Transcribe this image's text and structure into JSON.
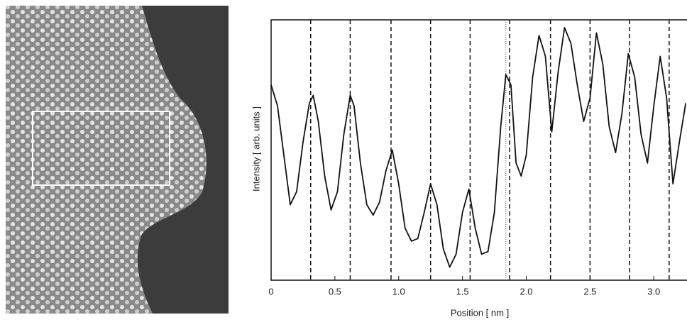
{
  "chart_data": {
    "type": "line",
    "x_label": "Position [ nm ]",
    "y_label": "Intensity [ arb. units ]",
    "x": [
      0,
      0.05,
      0.1,
      0.15,
      0.2,
      0.25,
      0.3,
      0.33,
      0.37,
      0.42,
      0.47,
      0.52,
      0.57,
      0.62,
      0.65,
      0.7,
      0.75,
      0.8,
      0.85,
      0.9,
      0.95,
      1.0,
      1.05,
      1.1,
      1.15,
      1.2,
      1.25,
      1.3,
      1.35,
      1.4,
      1.45,
      1.5,
      1.55,
      1.6,
      1.65,
      1.7,
      1.75,
      1.8,
      1.84,
      1.88,
      1.92,
      1.96,
      2.0,
      2.05,
      2.1,
      2.15,
      2.2,
      2.25,
      2.3,
      2.35,
      2.4,
      2.45,
      2.5,
      2.55,
      2.6,
      2.65,
      2.7,
      2.75,
      2.8,
      2.85,
      2.9,
      2.95,
      3.0,
      3.05,
      3.1,
      3.15,
      3.2,
      3.25
    ],
    "series": [
      {
        "color": "#111111",
        "values": [
          0.75,
          0.67,
          0.48,
          0.29,
          0.34,
          0.53,
          0.68,
          0.71,
          0.61,
          0.4,
          0.27,
          0.34,
          0.56,
          0.71,
          0.67,
          0.45,
          0.29,
          0.25,
          0.3,
          0.42,
          0.5,
          0.37,
          0.2,
          0.15,
          0.16,
          0.26,
          0.37,
          0.29,
          0.12,
          0.05,
          0.1,
          0.26,
          0.35,
          0.2,
          0.1,
          0.11,
          0.26,
          0.59,
          0.79,
          0.75,
          0.45,
          0.4,
          0.48,
          0.78,
          0.94,
          0.86,
          0.57,
          0.8,
          0.97,
          0.91,
          0.75,
          0.61,
          0.7,
          0.95,
          0.83,
          0.59,
          0.49,
          0.64,
          0.87,
          0.78,
          0.56,
          0.45,
          0.67,
          0.86,
          0.7,
          0.37,
          0.53,
          0.68
        ]
      }
    ],
    "xlim": [
      0,
      3.26
    ],
    "ylim": [
      0,
      1
    ],
    "xticks": [
      0,
      0.5,
      {
        "value": 1,
        "label": "1.0"
      },
      1.5,
      {
        "value": 2,
        "label": "2.0"
      },
      2.5,
      {
        "value": 3,
        "label": "3.0"
      }
    ],
    "dashed_lines": [
      0.31,
      0.62,
      0.94,
      1.25,
      1.56,
      1.87,
      2.19,
      2.5,
      2.81,
      3.12
    ],
    "dotted_lines": [
      1.84
    ]
  }
}
